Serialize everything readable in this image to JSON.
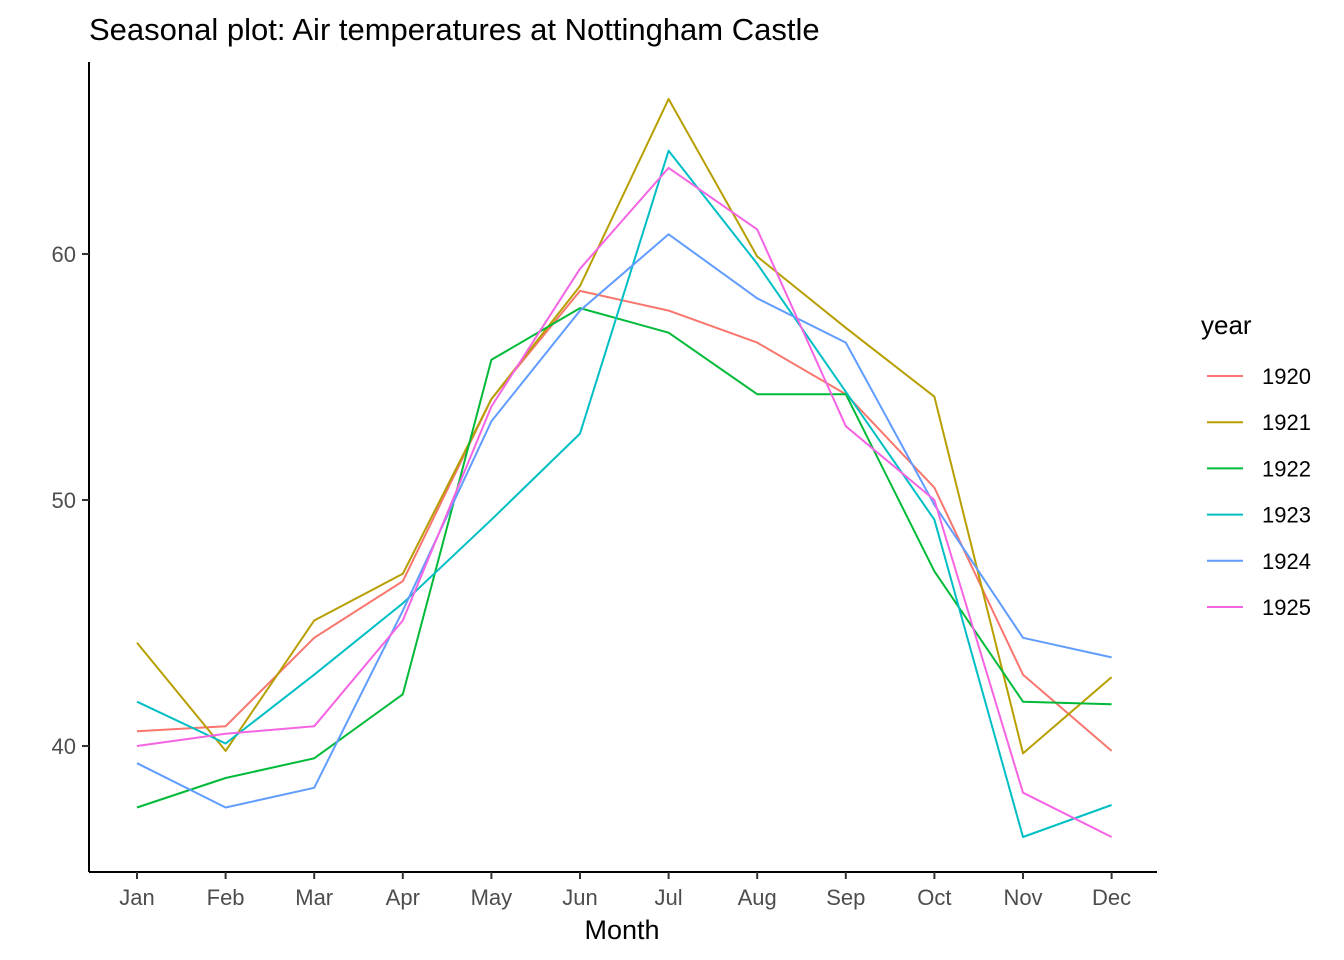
{
  "chart_data": {
    "type": "line",
    "title": "Seasonal plot: Air temperatures at Nottingham Castle",
    "xlabel": "Month",
    "ylabel": "",
    "categories": [
      "Jan",
      "Feb",
      "Mar",
      "Apr",
      "May",
      "Jun",
      "Jul",
      "Aug",
      "Sep",
      "Oct",
      "Nov",
      "Dec"
    ],
    "yticks": [
      40,
      50,
      60
    ],
    "ylim": [
      35.0,
      67.8
    ],
    "grid": false,
    "legend": {
      "title": "year",
      "placement": "right"
    },
    "series": [
      {
        "name": "1920",
        "color": "#F8766D",
        "values": [
          40.6,
          40.8,
          44.4,
          46.7,
          54.1,
          58.5,
          57.7,
          56.4,
          54.3,
          50.5,
          42.9,
          39.8
        ]
      },
      {
        "name": "1921",
        "color": "#B79F00",
        "values": [
          44.2,
          39.8,
          45.1,
          47.0,
          54.1,
          58.7,
          66.3,
          59.9,
          57.0,
          54.2,
          39.7,
          42.8
        ]
      },
      {
        "name": "1922",
        "color": "#00BA38",
        "values": [
          37.5,
          38.7,
          39.5,
          42.1,
          55.7,
          57.8,
          56.8,
          54.3,
          54.3,
          47.1,
          41.8,
          41.7
        ]
      },
      {
        "name": "1923",
        "color": "#00BFC4",
        "values": [
          41.8,
          40.1,
          42.9,
          45.8,
          49.2,
          52.7,
          64.2,
          59.6,
          54.4,
          49.2,
          36.3,
          37.6
        ]
      },
      {
        "name": "1924",
        "color": "#619CFF",
        "values": [
          39.3,
          37.5,
          38.3,
          45.5,
          53.2,
          57.7,
          60.8,
          58.2,
          56.4,
          49.8,
          44.4,
          43.6
        ]
      },
      {
        "name": "1925",
        "color": "#F564E3",
        "values": [
          40.0,
          40.5,
          40.8,
          45.1,
          53.8,
          59.4,
          63.5,
          61.0,
          53.0,
          50.0,
          38.1,
          36.3
        ]
      }
    ]
  }
}
